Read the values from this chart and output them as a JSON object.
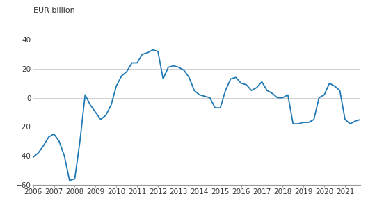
{
  "ylabel": "EUR billion",
  "line_color": "#2079b4",
  "line_width": 1.3,
  "background_color": "#ffffff",
  "grid_color": "#d0d0d0",
  "ylim": [
    -60,
    50
  ],
  "yticks": [
    -60,
    -40,
    -20,
    0,
    20,
    40
  ],
  "x_labels": [
    "2006",
    "2007",
    "2008",
    "2009",
    "2010",
    "2011",
    "2012",
    "2013",
    "2014",
    "2015",
    "2016",
    "2017",
    "2018",
    "2019",
    "2020",
    "2021"
  ],
  "values": [
    -41,
    -38,
    -33,
    -27,
    -25,
    -30,
    -40,
    -57,
    -56,
    -30,
    2,
    -5,
    -10,
    -15,
    -12,
    -5,
    8,
    15,
    18,
    24,
    24,
    30,
    31,
    33,
    32,
    13,
    21,
    22,
    21,
    19,
    14,
    5,
    2,
    1,
    0,
    -7,
    -7,
    5,
    13,
    14,
    10,
    9,
    5,
    7,
    11,
    5,
    3,
    0,
    0,
    2,
    -18,
    -18,
    -17,
    -17,
    -15,
    0,
    2,
    10,
    8,
    5,
    -15,
    -18,
    -16,
    -15
  ],
  "text_color": "#333333",
  "tick_fontsize": 7.5,
  "label_fontsize": 8.0
}
